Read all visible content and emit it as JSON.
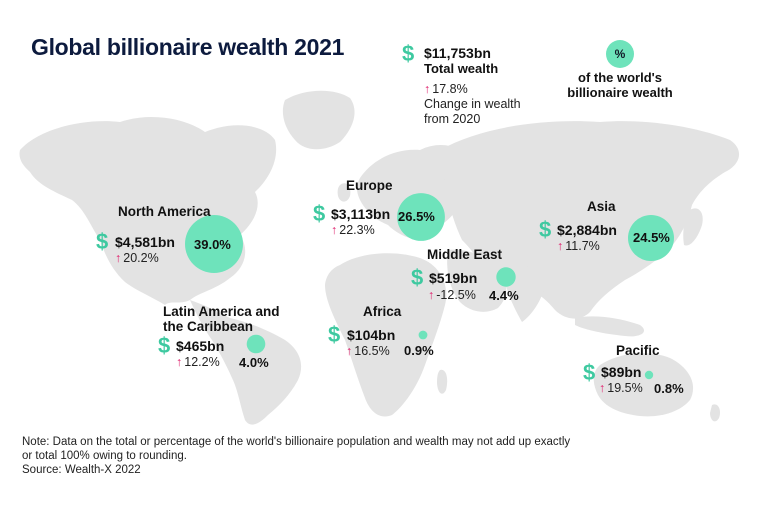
{
  "title": "Global billionaire wealth 2021",
  "colors": {
    "bubble": "#6ee3bb",
    "dollar": "#3ec9a0",
    "arrow": "#e0256f",
    "land": "#e3e3e3",
    "title": "#0d1b3e"
  },
  "legend": {
    "total_amount": "$11,753bn",
    "total_label": "Total wealth",
    "change_value": "17.8%",
    "change_label_line1": "Change in wealth",
    "change_label_line2": "from 2020",
    "bubble_symbol": "%",
    "bubble_label_line1": "of the world's",
    "bubble_label_line2": "billionaire wealth"
  },
  "chart_data": {
    "type": "bubble-map",
    "title": "Global billionaire wealth 2021",
    "regions": [
      {
        "name": "North America",
        "wealth": "$4,581bn",
        "change": "20.2%",
        "share": 39.0,
        "share_label": "39.0%"
      },
      {
        "name": "Europe",
        "wealth": "$3,113bn",
        "change": "22.3%",
        "share": 26.5,
        "share_label": "26.5%"
      },
      {
        "name": "Asia",
        "wealth": "$2,884bn",
        "change": "11.7%",
        "share": 24.5,
        "share_label": "24.5%"
      },
      {
        "name": "Middle East",
        "wealth": "$519bn",
        "change": "-12.5%",
        "share": 4.4,
        "share_label": "4.4%"
      },
      {
        "name_line1": "Latin America and",
        "name_line2": "the Caribbean",
        "wealth": "$465bn",
        "change": "12.2%",
        "share": 4.0,
        "share_label": "4.0%"
      },
      {
        "name": "Africa",
        "wealth": "$104bn",
        "change": "16.5%",
        "share": 0.9,
        "share_label": "0.9%"
      },
      {
        "name": "Pacific",
        "wealth": "$89bn",
        "change": "19.5%",
        "share": 0.8,
        "share_label": "0.8%"
      }
    ]
  },
  "note": {
    "line1": "Note: Data on the total or percentage of the world's billionaire population and wealth may not add up exactly",
    "line2": "or total 100% owing to rounding.",
    "source": "Source: Wealth-X 2022"
  }
}
